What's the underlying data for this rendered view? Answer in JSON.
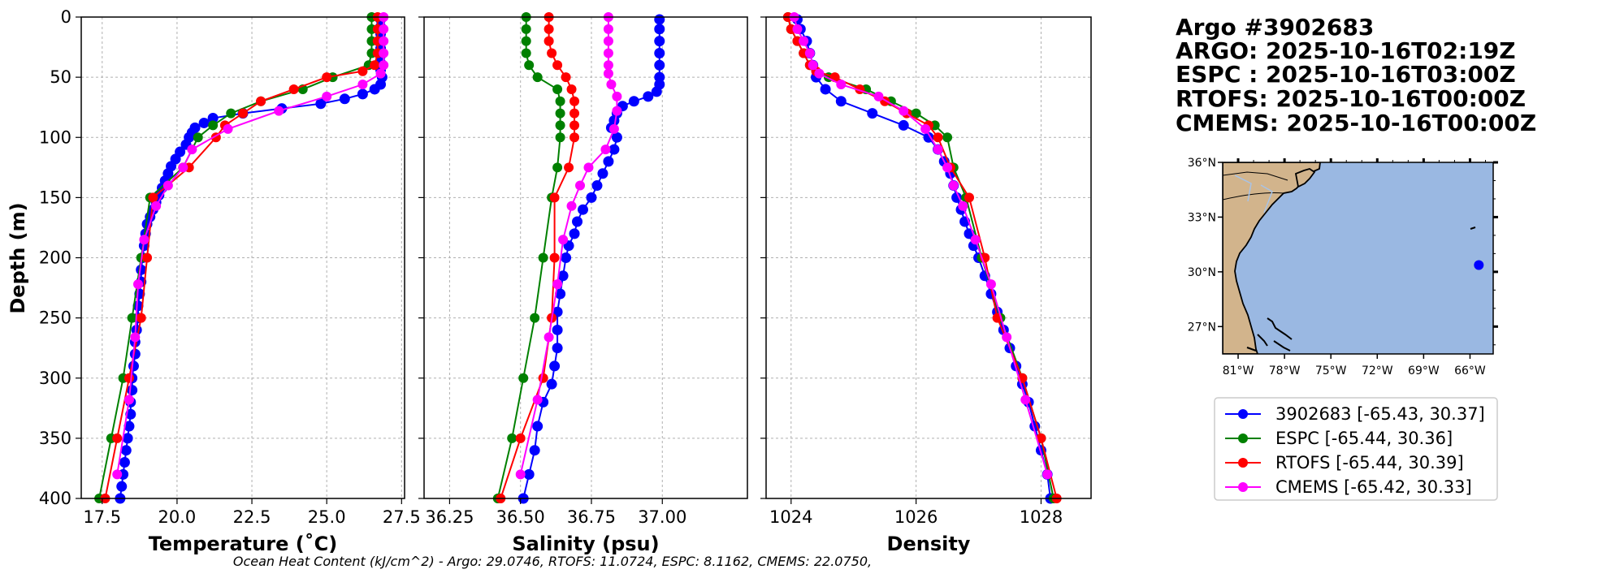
{
  "header": {
    "lines": [
      "Argo #3902683",
      "ARGO: 2025-10-16T02:19Z",
      "ESPC : 2025-10-16T03:00Z",
      "RTOFS: 2025-10-16T00:00Z",
      "CMEMS: 2025-10-16T00:00Z"
    ]
  },
  "footer": "Ocean Heat Content (kJ/cm^2) - Argo: 29.0746,  RTOFS: 11.0724,  ESPC: 8.1162,  CMEMS: 22.0750,",
  "colors": {
    "argo": "#0000ff",
    "espc": "#008000",
    "rtofs": "#ff0000",
    "cmems": "#ff00ff",
    "ocean": "#9ab8e2",
    "land": "#d2b48c"
  },
  "legend": [
    {
      "label": "3902683 [-65.43, 30.37]",
      "color": "#0000ff"
    },
    {
      "label": "ESPC [-65.44, 30.36]",
      "color": "#008000"
    },
    {
      "label": "RTOFS [-65.44, 30.39]",
      "color": "#ff0000"
    },
    {
      "label": "CMEMS [-65.42, 30.33]",
      "color": "#ff00ff"
    }
  ],
  "map": {
    "lat_labels": [
      "36°N",
      "33°N",
      "30°N",
      "27°N"
    ],
    "lat_values": [
      36,
      33,
      30,
      27
    ],
    "lon_labels": [
      "81°W",
      "78°W",
      "75°W",
      "72°W",
      "69°W",
      "66°W"
    ],
    "lon_values": [
      -81,
      -78,
      -75,
      -72,
      -69,
      -66
    ],
    "extent": {
      "lon_min": -82,
      "lon_max": -64.5,
      "lat_min": 25.5,
      "lat_max": 36
    },
    "float_position": {
      "lon": -65.43,
      "lat": 30.37
    }
  },
  "chart_data": [
    {
      "type": "line",
      "xlabel": "Temperature (˚C)",
      "ylabel": "Depth (m)",
      "xlim": [
        16.8,
        27.6
      ],
      "ylim": [
        400,
        0
      ],
      "xticks": [
        17.5,
        20.0,
        22.5,
        25.0,
        27.5
      ],
      "xtick_labels": [
        "17.5",
        "20.0",
        "22.5",
        "25.0",
        "27.5"
      ],
      "yticks": [
        0,
        50,
        100,
        150,
        200,
        250,
        300,
        350,
        400
      ],
      "ytick_labels": [
        "0",
        "50",
        "100",
        "150",
        "200",
        "250",
        "300",
        "350",
        "400"
      ],
      "series": [
        {
          "name": "3902683",
          "depth": [
            2,
            8,
            14,
            20,
            26,
            32,
            38,
            44,
            50,
            56,
            60,
            64,
            68,
            72,
            76,
            80,
            84,
            88,
            92,
            96,
            100,
            106,
            112,
            118,
            124,
            130,
            136,
            142,
            148,
            154,
            160,
            166,
            172,
            180,
            190,
            200,
            210,
            220,
            230,
            240,
            250,
            260,
            270,
            280,
            290,
            300,
            310,
            320,
            330,
            340,
            350,
            360,
            370,
            380,
            390,
            400
          ],
          "values": [
            26.8,
            26.8,
            26.8,
            26.8,
            26.8,
            26.8,
            26.8,
            26.8,
            26.85,
            26.8,
            26.6,
            26.2,
            25.6,
            24.8,
            23.5,
            22.2,
            21.2,
            20.9,
            20.6,
            20.5,
            20.4,
            20.3,
            20.1,
            19.95,
            19.8,
            19.7,
            19.6,
            19.5,
            19.4,
            19.3,
            19.2,
            19.1,
            19.0,
            18.95,
            18.9,
            18.85,
            18.8,
            18.8,
            18.75,
            18.7,
            18.7,
            18.65,
            18.6,
            18.6,
            18.55,
            18.5,
            18.5,
            18.45,
            18.45,
            18.4,
            18.35,
            18.3,
            18.25,
            18.2,
            18.15,
            18.1
          ]
        },
        {
          "name": "ESPC",
          "depth": [
            0,
            10,
            20,
            30,
            40,
            50,
            60,
            70,
            80,
            90,
            100,
            125,
            150,
            200,
            250,
            300,
            350,
            400
          ],
          "values": [
            26.5,
            26.5,
            26.5,
            26.5,
            26.4,
            25.2,
            24.2,
            22.8,
            21.8,
            21.2,
            20.7,
            20.2,
            19.1,
            18.8,
            18.5,
            18.2,
            17.8,
            17.4
          ]
        },
        {
          "name": "RTOFS",
          "depth": [
            0,
            10,
            20,
            30,
            40,
            45,
            50,
            60,
            70,
            80,
            90,
            100,
            125,
            150,
            200,
            250,
            300,
            350,
            400
          ],
          "values": [
            26.7,
            26.7,
            26.7,
            26.7,
            26.6,
            26.2,
            25.0,
            23.9,
            22.8,
            22.2,
            21.6,
            21.3,
            20.4,
            19.2,
            19.0,
            18.8,
            18.4,
            18.0,
            17.6
          ]
        },
        {
          "name": "CMEMS",
          "depth": [
            0,
            10,
            20,
            30,
            40,
            47,
            56,
            66,
            78,
            93,
            110,
            125,
            140,
            157,
            185,
            222,
            266,
            318,
            380
          ],
          "values": [
            26.9,
            26.9,
            26.9,
            26.9,
            26.9,
            26.8,
            26.2,
            25.0,
            23.4,
            21.7,
            20.5,
            20.2,
            19.7,
            19.3,
            18.9,
            18.7,
            18.6,
            18.4,
            18.0
          ]
        }
      ]
    },
    {
      "type": "line",
      "xlabel": "Salinity (psu)",
      "xlim": [
        36.16,
        37.3
      ],
      "ylim": [
        400,
        0
      ],
      "xticks": [
        36.25,
        36.5,
        36.75,
        37.0
      ],
      "xtick_labels": [
        "36.25",
        "36.50",
        "36.75",
        "37.00"
      ],
      "yticks": [
        0,
        50,
        100,
        150,
        200,
        250,
        300,
        350,
        400
      ],
      "series": [
        {
          "name": "3902683",
          "depth": [
            2,
            10,
            20,
            30,
            40,
            50,
            56,
            62,
            66,
            70,
            74,
            80,
            86,
            92,
            100,
            110,
            120,
            130,
            140,
            150,
            160,
            170,
            180,
            190,
            200,
            215,
            230,
            245,
            260,
            275,
            290,
            305,
            320,
            340,
            360,
            380,
            400
          ],
          "values": [
            36.99,
            36.99,
            36.99,
            36.99,
            36.99,
            36.99,
            36.99,
            36.98,
            36.95,
            36.9,
            36.86,
            36.84,
            36.83,
            36.82,
            36.84,
            36.83,
            36.81,
            36.79,
            36.77,
            36.75,
            36.72,
            36.7,
            36.69,
            36.67,
            36.66,
            36.65,
            36.64,
            36.63,
            36.63,
            36.63,
            36.62,
            36.61,
            36.58,
            36.56,
            36.55,
            36.53,
            36.51
          ]
        },
        {
          "name": "ESPC",
          "depth": [
            0,
            10,
            20,
            30,
            40,
            50,
            60,
            70,
            80,
            90,
            100,
            125,
            150,
            200,
            250,
            300,
            350,
            400
          ],
          "values": [
            36.52,
            36.52,
            36.52,
            36.52,
            36.53,
            36.56,
            36.63,
            36.64,
            36.64,
            36.64,
            36.64,
            36.63,
            36.61,
            36.58,
            36.55,
            36.51,
            36.47,
            36.42
          ]
        },
        {
          "name": "RTOFS",
          "depth": [
            0,
            10,
            20,
            30,
            40,
            50,
            60,
            70,
            80,
            90,
            100,
            125,
            150,
            200,
            250,
            300,
            350,
            400
          ],
          "values": [
            36.6,
            36.6,
            36.6,
            36.61,
            36.63,
            36.66,
            36.68,
            36.69,
            36.69,
            36.69,
            36.69,
            36.67,
            36.62,
            36.62,
            36.61,
            36.58,
            36.5,
            36.43
          ]
        },
        {
          "name": "CMEMS",
          "depth": [
            0,
            10,
            20,
            30,
            40,
            47,
            56,
            66,
            78,
            93,
            110,
            125,
            140,
            157,
            185,
            222,
            266,
            318,
            380
          ],
          "values": [
            36.81,
            36.81,
            36.81,
            36.81,
            36.81,
            36.81,
            36.82,
            36.84,
            36.84,
            36.83,
            36.8,
            36.74,
            36.71,
            36.68,
            36.65,
            36.63,
            36.6,
            36.56,
            36.5
          ]
        }
      ]
    },
    {
      "type": "line",
      "xlabel": "Density",
      "xlim": [
        1023.6,
        1028.8
      ],
      "ylim": [
        400,
        0
      ],
      "xticks": [
        1024,
        1026,
        1028
      ],
      "xtick_labels": [
        "1024",
        "1026",
        "1028"
      ],
      "yticks": [
        0,
        50,
        100,
        150,
        200,
        250,
        300,
        350,
        400
      ],
      "series": [
        {
          "name": "3902683",
          "depth": [
            2,
            10,
            20,
            30,
            40,
            50,
            60,
            70,
            80,
            90,
            100,
            110,
            120,
            130,
            140,
            150,
            160,
            170,
            180,
            190,
            200,
            215,
            230,
            245,
            260,
            275,
            290,
            305,
            320,
            340,
            360,
            380,
            400
          ],
          "values": [
            1024.1,
            1024.15,
            1024.25,
            1024.3,
            1024.35,
            1024.4,
            1024.55,
            1024.8,
            1025.3,
            1025.8,
            1026.2,
            1026.35,
            1026.45,
            1026.55,
            1026.6,
            1026.65,
            1026.72,
            1026.78,
            1026.85,
            1026.92,
            1027.0,
            1027.1,
            1027.2,
            1027.3,
            1027.4,
            1027.5,
            1027.6,
            1027.7,
            1027.8,
            1027.9,
            1028.0,
            1028.1,
            1028.15
          ]
        },
        {
          "name": "ESPC",
          "depth": [
            0,
            10,
            20,
            30,
            40,
            50,
            60,
            70,
            80,
            90,
            100,
            125,
            150,
            200,
            250,
            300,
            350,
            400
          ],
          "values": [
            1023.95,
            1024.0,
            1024.1,
            1024.2,
            1024.3,
            1024.6,
            1025.2,
            1025.6,
            1026.0,
            1026.3,
            1026.5,
            1026.6,
            1026.8,
            1027.05,
            1027.35,
            1027.7,
            1028.0,
            1028.2
          ]
        },
        {
          "name": "RTOFS",
          "depth": [
            0,
            10,
            20,
            30,
            40,
            45,
            50,
            60,
            70,
            80,
            90,
            100,
            125,
            150,
            200,
            250,
            300,
            350,
            400
          ],
          "values": [
            1023.95,
            1024.0,
            1024.1,
            1024.2,
            1024.3,
            1024.4,
            1024.7,
            1025.1,
            1025.5,
            1025.85,
            1026.2,
            1026.35,
            1026.55,
            1026.85,
            1027.1,
            1027.3,
            1027.7,
            1028.0,
            1028.25
          ]
        },
        {
          "name": "CMEMS",
          "depth": [
            0,
            10,
            20,
            30,
            40,
            47,
            56,
            66,
            78,
            93,
            110,
            125,
            140,
            157,
            185,
            222,
            266,
            318,
            380
          ],
          "values": [
            1024.05,
            1024.1,
            1024.2,
            1024.3,
            1024.35,
            1024.45,
            1024.8,
            1025.4,
            1025.8,
            1026.15,
            1026.35,
            1026.5,
            1026.6,
            1026.75,
            1026.95,
            1027.2,
            1027.45,
            1027.75,
            1028.1
          ]
        }
      ]
    }
  ]
}
